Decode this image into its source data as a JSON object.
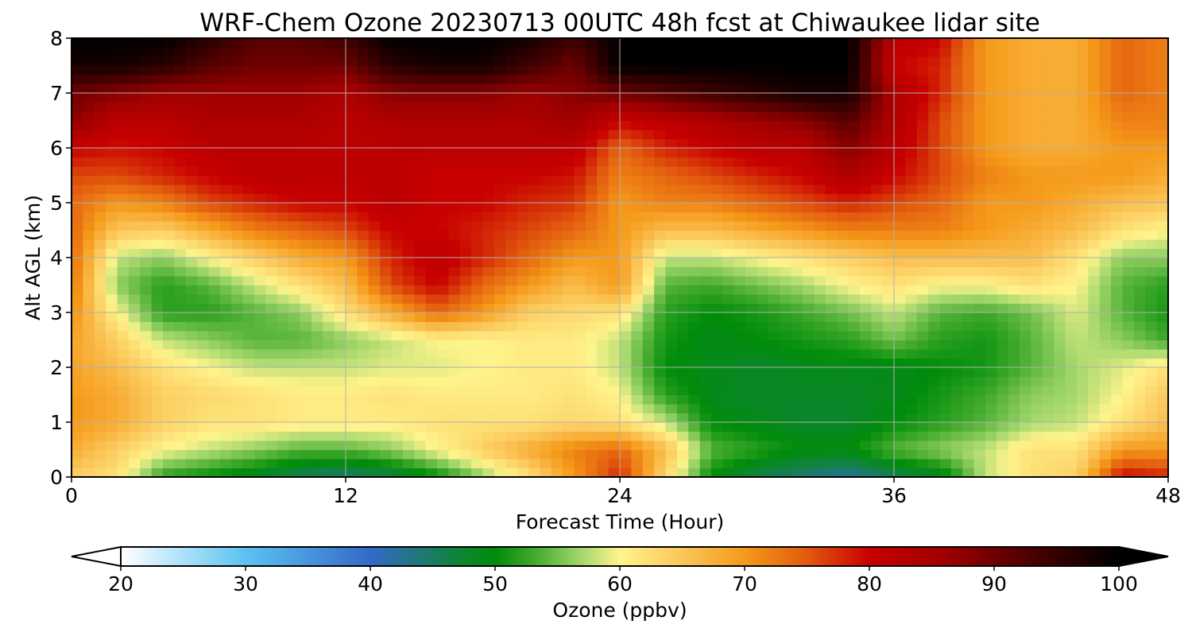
{
  "chart_data": {
    "type": "heatmap",
    "title": "WRF-Chem Ozone  20230713 00UTC 48h fcst at Chiwaukee lidar site",
    "xlabel": "Forecast Time (Hour)",
    "ylabel": "Alt AGL (km)",
    "xlim": [
      0,
      48
    ],
    "ylim": [
      0,
      8
    ],
    "x_ticks": [
      "0",
      "12",
      "24",
      "36",
      "48"
    ],
    "y_ticks": [
      "0",
      "1",
      "2",
      "3",
      "4",
      "5",
      "6",
      "7",
      "8"
    ],
    "grid": true,
    "x": [
      0,
      2,
      4,
      6,
      8,
      10,
      12,
      14,
      16,
      18,
      20,
      22,
      24,
      26,
      28,
      30,
      32,
      34,
      36,
      38,
      40,
      42,
      44,
      46,
      48
    ],
    "y": [
      0,
      0.5,
      1,
      1.5,
      2,
      2.5,
      3,
      3.5,
      4,
      4.5,
      5,
      5.5,
      6,
      6.5,
      7,
      7.5,
      8
    ],
    "z": [
      [
        64,
        62,
        52,
        50,
        48,
        45,
        44,
        46,
        50,
        56,
        62,
        70,
        78,
        63,
        50,
        46,
        44,
        42,
        45,
        48,
        58,
        62,
        64,
        80,
        78
      ],
      [
        68,
        64,
        60,
        58,
        56,
        54,
        54,
        56,
        60,
        64,
        68,
        72,
        74,
        66,
        54,
        52,
        50,
        50,
        54,
        56,
        58,
        62,
        62,
        70,
        70
      ],
      [
        70,
        68,
        64,
        62,
        62,
        61,
        61,
        61,
        62,
        62,
        62,
        63,
        62,
        58,
        50,
        49,
        48,
        48,
        50,
        52,
        54,
        57,
        58,
        62,
        66
      ],
      [
        70,
        68,
        64,
        63,
        62,
        61,
        61,
        62,
        61,
        61,
        61,
        62,
        60,
        52,
        49,
        48,
        48,
        48,
        49,
        51,
        53,
        56,
        57,
        60,
        65
      ],
      [
        69,
        66,
        62,
        60,
        58,
        58,
        58,
        59,
        59,
        60,
        61,
        61,
        58,
        50,
        49,
        48,
        49,
        49,
        49,
        50,
        51,
        54,
        57,
        59,
        62
      ],
      [
        69,
        64,
        58,
        56,
        54,
        54,
        56,
        58,
        60,
        60,
        61,
        61,
        58,
        51,
        49,
        50,
        51,
        52,
        55,
        52,
        51,
        54,
        58,
        56,
        53
      ],
      [
        71,
        60,
        52,
        52,
        54,
        56,
        62,
        68,
        74,
        70,
        64,
        63,
        62,
        52,
        50,
        51,
        53,
        55,
        58,
        54,
        53,
        55,
        59,
        54,
        51
      ],
      [
        73,
        56,
        52,
        54,
        58,
        62,
        66,
        76,
        80,
        74,
        70,
        66,
        70,
        54,
        53,
        55,
        57,
        60,
        62,
        60,
        60,
        62,
        60,
        54,
        52
      ],
      [
        74,
        58,
        56,
        60,
        64,
        68,
        70,
        78,
        82,
        78,
        74,
        70,
        70,
        58,
        58,
        60,
        62,
        64,
        66,
        66,
        66,
        66,
        62,
        56,
        56
      ],
      [
        74,
        65,
        64,
        68,
        72,
        74,
        76,
        80,
        80,
        78,
        76,
        74,
        70,
        66,
        66,
        68,
        70,
        72,
        72,
        72,
        70,
        68,
        66,
        62,
        60
      ],
      [
        74,
        70,
        72,
        76,
        78,
        80,
        80,
        82,
        80,
        80,
        78,
        77,
        70,
        72,
        72,
        74,
        76,
        78,
        76,
        74,
        70,
        70,
        68,
        66,
        65
      ],
      [
        76,
        76,
        78,
        80,
        82,
        82,
        82,
        82,
        80,
        80,
        80,
        79,
        72,
        74,
        76,
        78,
        80,
        84,
        80,
        76,
        72,
        70,
        70,
        70,
        68
      ],
      [
        80,
        79,
        80,
        82,
        82,
        82,
        82,
        82,
        82,
        82,
        82,
        82,
        74,
        78,
        80,
        82,
        82,
        88,
        82,
        76,
        70,
        68,
        68,
        70,
        70
      ],
      [
        88,
        82,
        82,
        84,
        84,
        84,
        82,
        84,
        84,
        84,
        84,
        86,
        80,
        82,
        84,
        86,
        88,
        92,
        84,
        76,
        70,
        68,
        68,
        72,
        72
      ],
      [
        90,
        88,
        86,
        86,
        86,
        86,
        84,
        88,
        88,
        88,
        86,
        88,
        90,
        92,
        94,
        96,
        98,
        98,
        84,
        78,
        70,
        68,
        68,
        74,
        72
      ],
      [
        98,
        98,
        96,
        92,
        90,
        90,
        90,
        96,
        98,
        98,
        94,
        90,
        100,
        100,
        100,
        100,
        100,
        100,
        80,
        78,
        70,
        68,
        68,
        74,
        72
      ],
      [
        100,
        100,
        100,
        96,
        92,
        92,
        94,
        100,
        100,
        100,
        98,
        94,
        100,
        100,
        100,
        100,
        100,
        100,
        82,
        80,
        70,
        68,
        68,
        74,
        72
      ]
    ],
    "colorbar": {
      "label": "Ozone  (ppbv)",
      "min": 20,
      "max": 100,
      "ticks": [
        "20",
        "30",
        "40",
        "50",
        "60",
        "70",
        "80",
        "90",
        "100"
      ],
      "extend": "both",
      "color_stops": [
        {
          "value": 20,
          "color": "#ffffff"
        },
        {
          "value": 30,
          "color": "#5cc2f2"
        },
        {
          "value": 40,
          "color": "#3569c8"
        },
        {
          "value": 47,
          "color": "#0f8438"
        },
        {
          "value": 50,
          "color": "#008c0a"
        },
        {
          "value": 53,
          "color": "#3ea82a"
        },
        {
          "value": 57,
          "color": "#a6d86e"
        },
        {
          "value": 60,
          "color": "#fff48c"
        },
        {
          "value": 65,
          "color": "#fbc659"
        },
        {
          "value": 70,
          "color": "#f59a1a"
        },
        {
          "value": 75,
          "color": "#e25a0e"
        },
        {
          "value": 80,
          "color": "#c80000"
        },
        {
          "value": 86,
          "color": "#a00000"
        },
        {
          "value": 93,
          "color": "#4a0000"
        },
        {
          "value": 100,
          "color": "#000000"
        }
      ]
    }
  }
}
